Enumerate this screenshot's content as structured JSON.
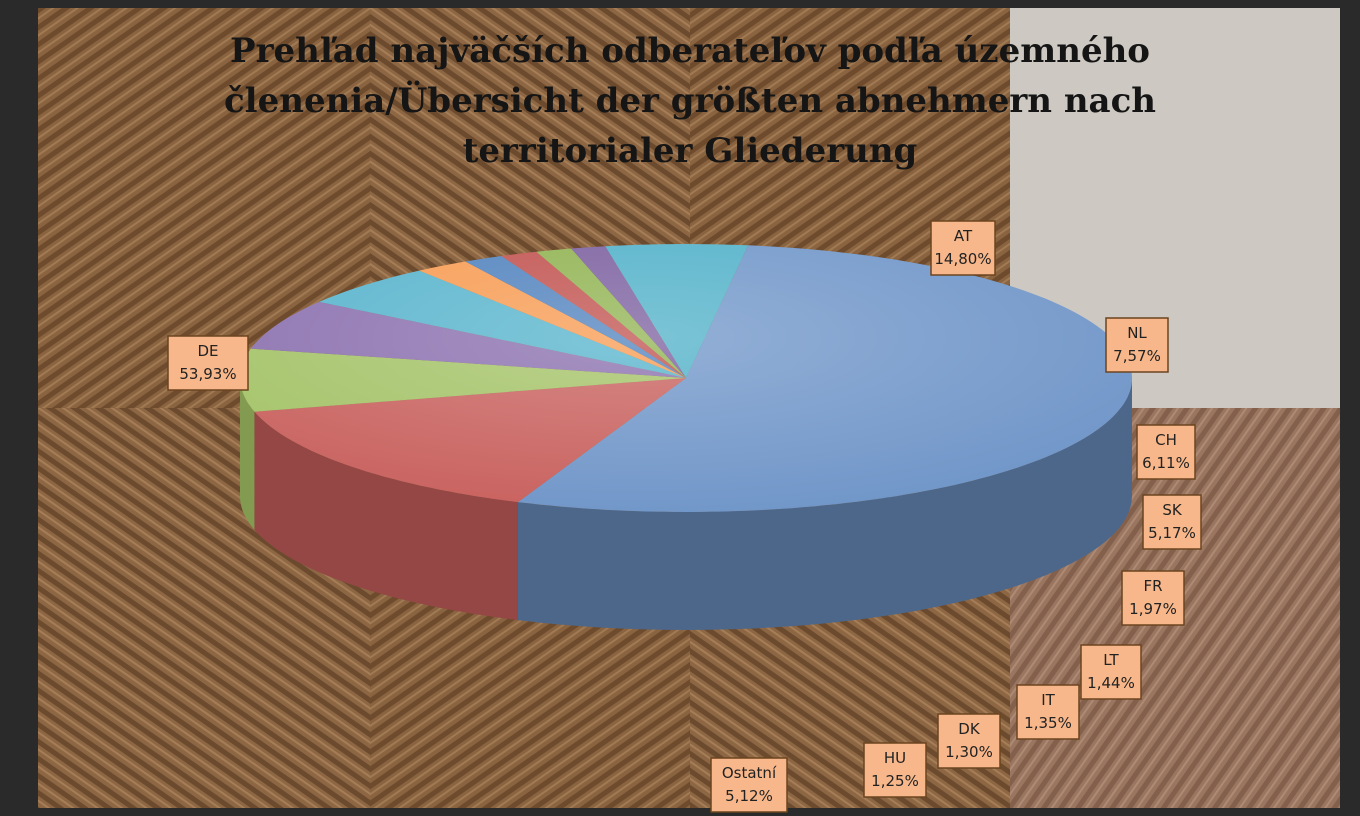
{
  "chart_data": {
    "type": "pie3d",
    "title": "Prehľad najväčších odberateľov podľa územného členenia/Übersicht der größten abnehmern nach territorialer Gliederung",
    "categories": [
      "DE",
      "AT",
      "NL",
      "CH",
      "SK",
      "FR",
      "LT",
      "IT",
      "DK",
      "HU",
      "Ostatní"
    ],
    "values": [
      53.93,
      14.8,
      7.57,
      6.11,
      5.17,
      1.97,
      1.44,
      1.35,
      1.3,
      1.25,
      5.12
    ],
    "value_labels": [
      "53,93%",
      "14,80%",
      "7,57%",
      "6,11%",
      "5,17%",
      "1,97%",
      "1,44%",
      "1,35%",
      "1,30%",
      "1,25%",
      "5,12%"
    ],
    "colors": [
      "#6f95c8",
      "#c8605d",
      "#a3c266",
      "#8a6fae",
      "#56b3cc",
      "#f79a50",
      "#4f81bd",
      "#c0504d",
      "#8fb24f",
      "#7a5e9e",
      "#4fb0c8"
    ]
  }
}
